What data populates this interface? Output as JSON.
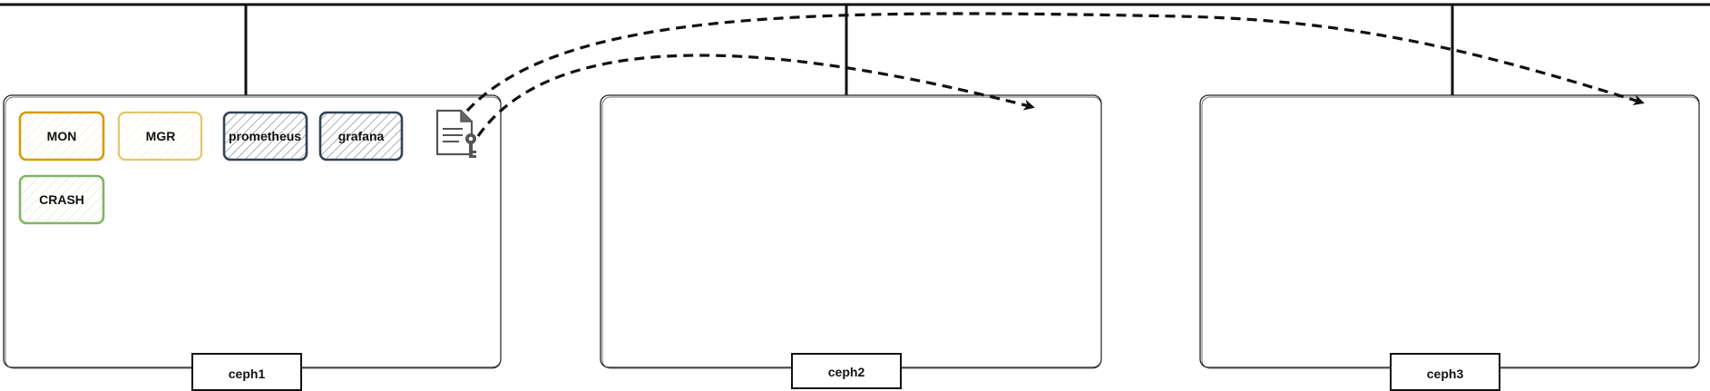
{
  "nodes": [
    {
      "label": "ceph1"
    },
    {
      "label": "ceph2"
    },
    {
      "label": "ceph3"
    }
  ],
  "services": [
    {
      "label": "MON",
      "color": "#d79b00",
      "fill": "#ffe6a6"
    },
    {
      "label": "MGR",
      "color": "#d6b656",
      "fill": "#fff2cc"
    },
    {
      "label": "prometheus",
      "color": "#314354",
      "fill": "#6c8ebf"
    },
    {
      "label": "grafana",
      "color": "#314354",
      "fill": "#6c8ebf"
    },
    {
      "label": "CRASH",
      "color": "#82b366",
      "fill": "#d5e8d4"
    }
  ],
  "icons": {
    "key_file": "key-file-icon"
  }
}
